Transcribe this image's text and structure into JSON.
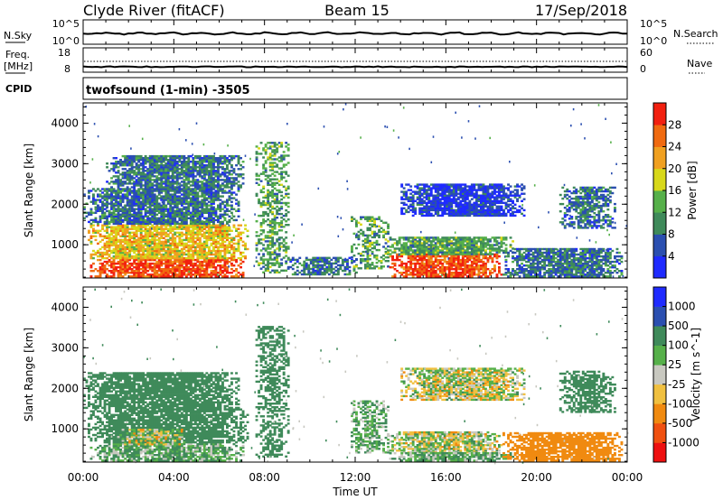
{
  "header": {
    "station": "Clyde River (fitACF)",
    "beam": "Beam 15",
    "date": "17/Sep/2018"
  },
  "noise_panel": {
    "left_label": "N.Sky",
    "right_label": "N.Search",
    "left_ticks": [
      "10^5",
      "10^0"
    ],
    "right_ticks": [
      "10^5",
      "10^0"
    ]
  },
  "freq_panel": {
    "left_label_1": "Freq.",
    "left_label_2": "[MHz]",
    "right_label": "Nave",
    "left_ticks": [
      "18",
      "8"
    ],
    "right_ticks": [
      "60",
      "0"
    ]
  },
  "cpid": {
    "label": "CPID",
    "text": "twofsound (1-min) -3505"
  },
  "x_axis": {
    "label": "Time UT",
    "ticks": [
      "00:00",
      "04:00",
      "08:00",
      "12:00",
      "16:00",
      "20:00",
      "00:00"
    ]
  },
  "colors": {
    "power_scale": [
      "#1f2bff",
      "#2b4fb0",
      "#3f8a5a",
      "#56b04a",
      "#d8d81a",
      "#f0a020",
      "#f06a10",
      "#f22010"
    ],
    "velocity_scale": [
      "#ee1010",
      "#f05010",
      "#f08a10",
      "#f0c040",
      "#c8c8c0",
      "#56b04a",
      "#3f8a5a",
      "#2b4fb0",
      "#1f2bff"
    ]
  },
  "chart_data": [
    {
      "type": "heatmap",
      "title": "Power",
      "ylabel": "Slant Range [km]",
      "xlabel": "",
      "x_range_hours": [
        0,
        24
      ],
      "ylim": [
        180,
        4500
      ],
      "y_ticks": [
        1000,
        2000,
        3000,
        4000
      ],
      "colorbar_label": "Power [dB]",
      "colorbar_ticks": [
        "4",
        "8",
        "12",
        "16",
        "20",
        "24",
        "28"
      ],
      "regions": [
        {
          "t0": 0.3,
          "t1": 7.0,
          "r0": 200,
          "r1": 650,
          "level": 28
        },
        {
          "t0": 0.2,
          "t1": 7.2,
          "r0": 650,
          "r1": 1500,
          "level": 20
        },
        {
          "t0": 0.0,
          "t1": 6.8,
          "r0": 1500,
          "r1": 2400,
          "level": 8
        },
        {
          "t0": 1.0,
          "t1": 7.0,
          "r0": 2400,
          "r1": 3200,
          "level": 8
        },
        {
          "t0": 7.6,
          "t1": 9.0,
          "r0": 300,
          "r1": 3500,
          "level": 12
        },
        {
          "t0": 9.0,
          "t1": 12.0,
          "r0": 250,
          "r1": 700,
          "level": 8
        },
        {
          "t0": 11.8,
          "t1": 13.4,
          "r0": 400,
          "r1": 1700,
          "level": 12
        },
        {
          "t0": 13.5,
          "t1": 18.5,
          "r0": 200,
          "r1": 750,
          "level": 28
        },
        {
          "t0": 13.2,
          "t1": 19.0,
          "r0": 750,
          "r1": 1200,
          "level": 12
        },
        {
          "t0": 18.5,
          "t1": 23.8,
          "r0": 200,
          "r1": 900,
          "level": 8
        },
        {
          "t0": 14.0,
          "t1": 19.5,
          "r0": 1700,
          "r1": 2500,
          "level": 4
        },
        {
          "t0": 21.0,
          "t1": 23.5,
          "r0": 1400,
          "r1": 2400,
          "level": 8
        }
      ]
    },
    {
      "type": "heatmap",
      "title": "Velocity",
      "ylabel": "Slant Range [km]",
      "xlabel": "Time UT",
      "x_range_hours": [
        0,
        24
      ],
      "ylim": [
        180,
        4500
      ],
      "y_ticks": [
        1000,
        2000,
        3000,
        4000
      ],
      "colorbar_label": "Velocity [m s^-1]",
      "colorbar_ticks": [
        "1000",
        "500",
        "100",
        "25",
        "-25",
        "-100",
        "-500",
        "-1000"
      ],
      "regions": [
        {
          "t0": 0.3,
          "t1": 7.0,
          "r0": 200,
          "r1": 650,
          "level": 100
        },
        {
          "t0": 0.2,
          "t1": 7.2,
          "r0": 650,
          "r1": 1500,
          "level": 300
        },
        {
          "t0": 1.5,
          "t1": 4.5,
          "r0": 600,
          "r1": 1000,
          "level": 0
        },
        {
          "t0": 0.0,
          "t1": 6.8,
          "r0": 1500,
          "r1": 2400,
          "level": 300
        },
        {
          "t0": 7.6,
          "t1": 9.0,
          "r0": 300,
          "r1": 3500,
          "level": 300
        },
        {
          "t0": 11.8,
          "t1": 13.4,
          "r0": 400,
          "r1": 1700,
          "level": 100
        },
        {
          "t0": 13.5,
          "t1": 18.5,
          "r0": 400,
          "r1": 900,
          "level": 0
        },
        {
          "t0": 13.5,
          "t1": 19.0,
          "r0": 200,
          "r1": 400,
          "level": 100
        },
        {
          "t0": 18.5,
          "t1": 23.8,
          "r0": 200,
          "r1": 900,
          "level": -300
        },
        {
          "t0": 14.0,
          "t1": 19.5,
          "r0": 1700,
          "r1": 2500,
          "level": 0
        },
        {
          "t0": 21.0,
          "t1": 23.5,
          "r0": 1400,
          "r1": 2400,
          "level": 300
        }
      ]
    }
  ]
}
